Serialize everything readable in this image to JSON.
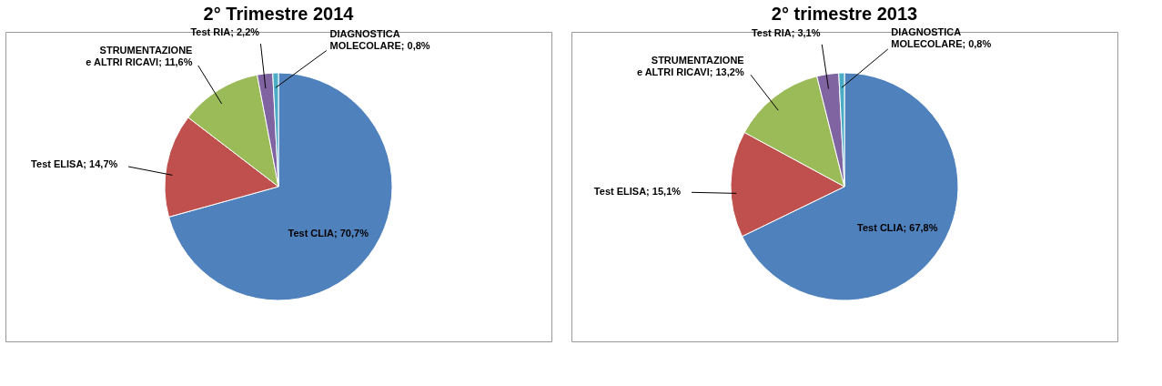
{
  "chart_data": [
    {
      "type": "pie",
      "title": "2° Trimestre 2014",
      "categories": [
        "Test CLIA",
        "Test ELISA",
        "STRUMENTAZIONE e ALTRI RICAVI",
        "Test RIA",
        "DIAGNOSTICA MOLECOLARE"
      ],
      "values": [
        70.7,
        14.7,
        11.6,
        2.2,
        0.8
      ],
      "colors": [
        "#4f81bd",
        "#c0504d",
        "#9bbb59",
        "#8064a2",
        "#4bacc6"
      ],
      "value_labels": [
        "70,7%",
        "14,7%",
        "11,6%",
        "2,2%",
        "0,8%"
      ]
    },
    {
      "type": "pie",
      "title": "2° trimestre 2013",
      "categories": [
        "Test CLIA",
        "Test ELISA",
        "STRUMENTAZIONE e ALTRI RICAVI",
        "Test RIA",
        "DIAGNOSTICA MOLECOLARE"
      ],
      "values": [
        67.8,
        15.1,
        13.2,
        3.1,
        0.8
      ],
      "colors": [
        "#4f81bd",
        "#c0504d",
        "#9bbb59",
        "#8064a2",
        "#4bacc6"
      ],
      "value_labels": [
        "67,8%",
        "15,1%",
        "13,2%",
        "3,1%",
        "0,8%"
      ]
    }
  ]
}
